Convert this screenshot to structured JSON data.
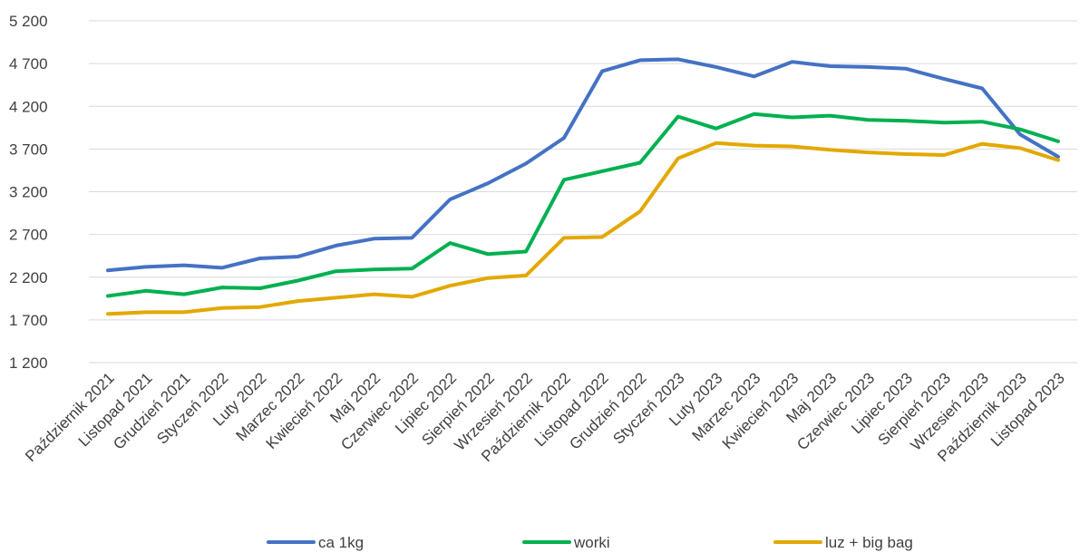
{
  "chart_data": {
    "type": "line",
    "title": "",
    "xlabel": "",
    "ylabel": "",
    "ylim": [
      1200,
      5200
    ],
    "yticks": [
      "1 200",
      "1 700",
      "2 200",
      "2 700",
      "3 200",
      "3 700",
      "4 200",
      "4 700",
      "5 200"
    ],
    "ytick_values": [
      1200,
      1700,
      2200,
      2700,
      3200,
      3700,
      4200,
      4700,
      5200
    ],
    "grid": true,
    "legend_position": "bottom",
    "categories": [
      "Październik 2021",
      "Listopad 2021",
      "Grudzień 2021",
      "Styczeń 2022",
      "Luty 2022",
      "Marzec 2022",
      "Kwiecień 2022",
      "Maj 2022",
      "Czerwiec 2022",
      "Lipiec 2022",
      "Sierpień 2022",
      "Wrzesień 2022",
      "Październik 2022",
      "Listopad 2022",
      "Grudzień 2022",
      "Styczeń 2023",
      "Luty 2023",
      "Marzec 2023",
      "Kwiecień 2023",
      "Maj 2023",
      "Czerwiec 2023",
      "Lipiec 2023",
      "Sierpień 2023",
      "Wrzesień 2023",
      "Październik 2023",
      "Listopad 2023"
    ],
    "series": [
      {
        "name": "ca 1kg",
        "color": "#4472C4",
        "values": [
          2280,
          2320,
          2340,
          2310,
          2420,
          2440,
          2570,
          2650,
          2660,
          3110,
          3300,
          3530,
          3830,
          4610,
          4740,
          4750,
          4660,
          4550,
          4720,
          4670,
          4660,
          4640,
          4520,
          4410,
          3870,
          3610
        ]
      },
      {
        "name": "worki",
        "color": "#00B050",
        "values": [
          1980,
          2040,
          2000,
          2080,
          2070,
          2160,
          2270,
          2290,
          2300,
          2600,
          2470,
          2500,
          3340,
          3440,
          3540,
          4080,
          3940,
          4110,
          4070,
          4090,
          4040,
          4030,
          4010,
          4020,
          3930,
          3790
        ]
      },
      {
        "name": "luz + big bag",
        "color": "#E3A800",
        "values": [
          1770,
          1790,
          1790,
          1840,
          1850,
          1920,
          1960,
          2000,
          1970,
          2100,
          2190,
          2220,
          2660,
          2670,
          2970,
          3590,
          3770,
          3740,
          3730,
          3690,
          3660,
          3640,
          3630,
          3760,
          3710,
          3570
        ]
      }
    ]
  }
}
